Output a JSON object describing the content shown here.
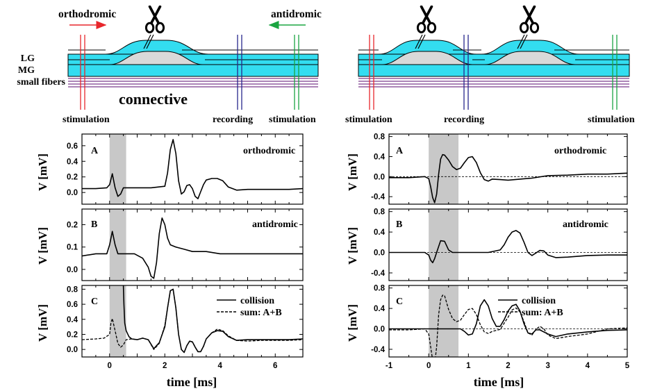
{
  "diagram_left": {
    "orthodromic": "orthodromic",
    "antidromic": "antidromic",
    "layers": [
      "LG",
      "MG",
      "small fibers"
    ],
    "connective": "connective",
    "stim_left": "stimulation",
    "recording": "recording",
    "stim_right": "stimulation",
    "colors": {
      "ortho_arrow": "#e8262b",
      "anti_arrow": "#1aa541",
      "recording": "#26268c",
      "fiber_fill": "#33ddf0",
      "fiber_bg": "#d9d9d9",
      "small_fibers": "#7a3b8c"
    }
  },
  "diagram_right": {
    "stim_left": "stimulation",
    "recording": "recording",
    "stim_right": "stimulation"
  },
  "panels": {
    "A_letter": "A",
    "B_letter": "B",
    "C_letter": "C",
    "A_title": "orthodromic",
    "B_title": "antidromic",
    "legend_solid": "collision",
    "legend_dashed": "sum: A+B",
    "ylabel": "V [mV]",
    "xlabel": "time [ms]"
  },
  "chart_data": [
    {
      "type": "line",
      "id": "left-A",
      "xlim": [
        -1,
        7
      ],
      "ylim": [
        -0.15,
        0.75
      ],
      "yticks": [
        "0.0",
        "0.2",
        "0.4",
        "0.6"
      ],
      "ytick_values": [
        0.0,
        0.2,
        0.4,
        0.6
      ],
      "shade": [
        0,
        0.6
      ],
      "series": [
        {
          "style": "solid",
          "x": [
            -1,
            -0.5,
            -0.1,
            0.0,
            0.1,
            0.2,
            0.3,
            0.4,
            0.5,
            0.7,
            1.0,
            1.5,
            2.0,
            2.1,
            2.2,
            2.3,
            2.4,
            2.5,
            2.6,
            2.7,
            2.8,
            2.9,
            3.0,
            3.1,
            3.2,
            3.3,
            3.4,
            3.5,
            3.7,
            3.9,
            4.1,
            4.3,
            4.6,
            5.0,
            5.5,
            6.0,
            6.5,
            7.0
          ],
          "y": [
            0.05,
            0.05,
            0.06,
            0.1,
            0.24,
            0.06,
            -0.05,
            -0.02,
            0.06,
            0.06,
            0.06,
            0.06,
            0.08,
            0.25,
            0.55,
            0.68,
            0.5,
            0.15,
            -0.02,
            0.01,
            0.09,
            0.1,
            0.05,
            -0.05,
            -0.08,
            0.01,
            0.1,
            0.16,
            0.18,
            0.18,
            0.15,
            0.07,
            0.03,
            0.04,
            0.04,
            0.04,
            0.04,
            0.05
          ]
        }
      ]
    },
    {
      "type": "line",
      "id": "left-B",
      "xlim": [
        -1,
        7
      ],
      "ylim": [
        -0.05,
        0.27
      ],
      "yticks": [
        "0.0",
        "0.1",
        "0.2"
      ],
      "ytick_values": [
        0.0,
        0.1,
        0.2
      ],
      "shade": [
        0,
        0.6
      ],
      "series": [
        {
          "style": "solid",
          "x": [
            -1,
            -0.5,
            -0.1,
            0.0,
            0.1,
            0.2,
            0.3,
            0.4,
            0.6,
            0.9,
            1.2,
            1.4,
            1.5,
            1.6,
            1.7,
            1.8,
            1.9,
            2.0,
            2.1,
            2.2,
            2.4,
            2.7,
            3.0,
            3.5,
            4.0,
            4.5,
            5.0,
            5.5,
            6.0,
            6.5,
            7.0
          ],
          "y": [
            0.06,
            0.07,
            0.07,
            0.11,
            0.17,
            0.11,
            0.07,
            0.07,
            0.07,
            0.07,
            0.05,
            0.01,
            -0.03,
            -0.04,
            0.03,
            0.16,
            0.23,
            0.2,
            0.14,
            0.11,
            0.1,
            0.09,
            0.08,
            0.08,
            0.07,
            0.07,
            0.07,
            0.07,
            0.07,
            0.07,
            0.07
          ]
        }
      ]
    },
    {
      "type": "line",
      "id": "left-C",
      "xlim": [
        -1,
        7
      ],
      "ylim": [
        -0.1,
        0.85
      ],
      "yticks": [
        "0.0",
        "0.2",
        "0.4",
        "0.6",
        "0.8"
      ],
      "ytick_values": [
        0.0,
        0.2,
        0.4,
        0.6,
        0.8
      ],
      "xticks": [
        "0",
        "2",
        "4",
        "6"
      ],
      "xtick_values": [
        0,
        2,
        4,
        6
      ],
      "shade": [
        0,
        0.6
      ],
      "series": [
        {
          "name": "collision",
          "style": "solid",
          "x": [
            0.5,
            0.52,
            0.55,
            0.6,
            0.7,
            0.8,
            1.0,
            1.2,
            1.4,
            1.6,
            1.8,
            2.0,
            2.1,
            2.2,
            2.3,
            2.4,
            2.5,
            2.6,
            2.7,
            2.8,
            2.9,
            3.0,
            3.1,
            3.2,
            3.3,
            3.4,
            3.5,
            3.7,
            3.9,
            4.1,
            4.3,
            4.6,
            5.0,
            5.5,
            6.0,
            6.5,
            7.0
          ],
          "y": [
            0.85,
            0.6,
            0.35,
            0.25,
            0.17,
            0.14,
            0.13,
            0.15,
            0.13,
            0.01,
            0.09,
            0.3,
            0.55,
            0.78,
            0.8,
            0.55,
            0.2,
            0.0,
            -0.04,
            0.05,
            0.11,
            0.1,
            0.03,
            -0.03,
            -0.03,
            0.04,
            0.14,
            0.22,
            0.25,
            0.24,
            0.17,
            0.12,
            0.13,
            0.13,
            0.13,
            0.13,
            0.14
          ]
        },
        {
          "name": "sum: A+B",
          "style": "dashed",
          "x": [
            -1,
            -0.5,
            -0.2,
            0.0,
            0.05,
            0.1,
            0.2,
            0.3,
            0.4,
            0.5,
            0.6,
            0.8,
            1.0,
            1.2,
            1.4,
            1.6,
            1.8,
            2.0,
            2.1,
            2.2,
            2.3,
            2.4,
            2.5,
            2.6,
            2.7,
            2.8,
            2.9,
            3.0,
            3.1,
            3.2,
            3.3,
            3.4,
            3.5,
            3.7,
            3.9,
            4.1,
            4.3,
            4.6,
            5.0,
            5.5,
            6.0,
            6.5,
            7.0
          ],
          "y": [
            0.13,
            0.14,
            0.15,
            0.2,
            0.35,
            0.41,
            0.25,
            0.08,
            0.03,
            0.06,
            0.13,
            0.14,
            0.13,
            0.15,
            0.13,
            0.0,
            0.08,
            0.32,
            0.55,
            0.78,
            0.8,
            0.55,
            0.2,
            0.0,
            -0.04,
            0.05,
            0.11,
            0.1,
            0.03,
            -0.03,
            -0.03,
            0.04,
            0.14,
            0.22,
            0.27,
            0.25,
            0.18,
            0.12,
            0.11,
            0.12,
            0.12,
            0.12,
            0.13
          ]
        }
      ]
    },
    {
      "type": "line",
      "id": "right-A",
      "xlim": [
        -1,
        5
      ],
      "ylim": [
        -0.55,
        0.85
      ],
      "yticks": [
        "-0.4",
        "0.0",
        "0.4",
        "0.8"
      ],
      "ytick_values": [
        -0.4,
        0.0,
        0.4,
        0.8
      ],
      "shade": [
        0,
        0.75
      ],
      "zero_line": true,
      "series": [
        {
          "style": "solid",
          "x": [
            -1,
            -0.5,
            -0.1,
            0.0,
            0.05,
            0.1,
            0.15,
            0.2,
            0.25,
            0.3,
            0.35,
            0.4,
            0.5,
            0.6,
            0.7,
            0.8,
            0.9,
            1.0,
            1.1,
            1.2,
            1.3,
            1.4,
            1.5,
            1.6,
            1.8,
            2.0,
            2.3,
            2.6,
            3.0,
            3.5,
            4.0,
            4.5,
            5.0
          ],
          "y": [
            -0.02,
            -0.02,
            0.0,
            -0.04,
            -0.2,
            -0.42,
            -0.52,
            -0.35,
            0.05,
            0.35,
            0.44,
            0.43,
            0.33,
            0.2,
            0.14,
            0.17,
            0.28,
            0.38,
            0.4,
            0.28,
            0.08,
            -0.06,
            -0.09,
            -0.05,
            -0.06,
            -0.07,
            -0.05,
            -0.03,
            0.02,
            0.03,
            0.05,
            0.05,
            0.07
          ]
        }
      ]
    },
    {
      "type": "line",
      "id": "right-B",
      "xlim": [
        -1,
        5
      ],
      "ylim": [
        -0.55,
        0.85
      ],
      "yticks": [
        "-0.4",
        "0.0",
        "0.4",
        "0.8"
      ],
      "ytick_values": [
        -0.4,
        0.0,
        0.4,
        0.8
      ],
      "shade": [
        0,
        0.75
      ],
      "zero_line": true,
      "series": [
        {
          "style": "solid",
          "x": [
            -1,
            -0.5,
            -0.1,
            0.0,
            0.05,
            0.1,
            0.15,
            0.2,
            0.3,
            0.4,
            0.5,
            0.6,
            0.7,
            0.9,
            1.2,
            1.5,
            1.8,
            1.9,
            2.0,
            2.1,
            2.2,
            2.3,
            2.4,
            2.5,
            2.6,
            2.7,
            2.8,
            2.9,
            3.0,
            3.2,
            3.5,
            4.0,
            4.5,
            5.0
          ],
          "y": [
            0.0,
            0.0,
            0.0,
            -0.05,
            -0.15,
            -0.2,
            -0.12,
            0.0,
            0.23,
            0.22,
            0.05,
            0.0,
            0.0,
            0.0,
            0.0,
            0.0,
            0.05,
            0.15,
            0.3,
            0.4,
            0.43,
            0.38,
            0.2,
            0.0,
            -0.06,
            -0.01,
            0.04,
            0.03,
            -0.05,
            -0.1,
            -0.09,
            -0.06,
            -0.05,
            -0.05
          ]
        }
      ]
    },
    {
      "type": "line",
      "id": "right-C",
      "xlim": [
        -1,
        5
      ],
      "ylim": [
        -0.55,
        0.85
      ],
      "yticks": [
        "-0.4",
        "0.0",
        "0.4",
        "0.8"
      ],
      "ytick_values": [
        -0.4,
        0.0,
        0.4,
        0.8
      ],
      "xticks": [
        "-1",
        "0",
        "1",
        "2",
        "3",
        "4",
        "5"
      ],
      "xtick_values": [
        -1,
        0,
        1,
        2,
        3,
        4,
        5
      ],
      "shade": [
        0,
        0.75
      ],
      "zero_line": true,
      "series": [
        {
          "name": "collision",
          "style": "solid",
          "x": [
            -1,
            -0.5,
            0.0,
            0.3,
            0.6,
            0.8,
            0.9,
            1.0,
            1.1,
            1.2,
            1.3,
            1.4,
            1.5,
            1.6,
            1.7,
            1.8,
            1.9,
            2.0,
            2.1,
            2.2,
            2.3,
            2.4,
            2.5,
            2.6,
            2.7,
            2.8,
            3.0,
            3.2,
            3.5,
            4.0,
            4.5,
            5.0
          ],
          "y": [
            0.0,
            0.0,
            0.0,
            0.0,
            0.0,
            0.0,
            -0.05,
            -0.12,
            -0.1,
            0.1,
            0.45,
            0.57,
            0.45,
            0.2,
            0.05,
            0.05,
            0.18,
            0.35,
            0.45,
            0.48,
            0.35,
            0.1,
            -0.08,
            -0.1,
            -0.02,
            -0.02,
            -0.1,
            -0.15,
            -0.1,
            -0.06,
            -0.03,
            -0.02
          ]
        },
        {
          "name": "sum: A+B",
          "style": "dashed",
          "x": [
            -1,
            -0.5,
            -0.1,
            0.0,
            0.05,
            0.1,
            0.15,
            0.2,
            0.25,
            0.3,
            0.35,
            0.4,
            0.5,
            0.6,
            0.7,
            0.8,
            0.9,
            1.0,
            1.1,
            1.2,
            1.3,
            1.4,
            1.5,
            1.6,
            1.8,
            2.0,
            2.1,
            2.2,
            2.3,
            2.4,
            2.5,
            2.6,
            2.7,
            2.8,
            2.9,
            3.0,
            3.2,
            3.5,
            4.0,
            4.5,
            5.0
          ],
          "y": [
            -0.02,
            -0.02,
            0.0,
            -0.1,
            -0.35,
            -0.62,
            -0.7,
            -0.35,
            0.28,
            0.57,
            0.66,
            0.65,
            0.38,
            0.2,
            0.14,
            0.17,
            0.28,
            0.38,
            0.4,
            0.28,
            0.08,
            -0.06,
            -0.09,
            -0.05,
            -0.01,
            0.23,
            0.37,
            0.41,
            0.33,
            0.14,
            -0.08,
            -0.12,
            -0.01,
            0.05,
            0.0,
            -0.12,
            -0.19,
            -0.15,
            -0.1,
            -0.0,
            0.02
          ]
        }
      ]
    }
  ]
}
